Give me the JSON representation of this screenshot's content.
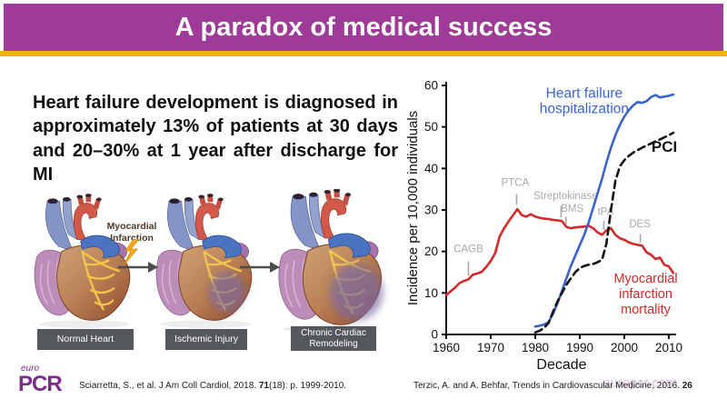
{
  "header": {
    "title": "A paradox of medical success"
  },
  "statement": "Heart failure development is diagnosed in approximately 13% of patients at 30 days and 20–30% at 1 year after discharge for MI",
  "figure": {
    "mi_event_label": "Myocardial\nInfarction",
    "stages": [
      {
        "label": "Normal Heart"
      },
      {
        "label": "Ischemic Injury"
      },
      {
        "label": "Chronic Cardiac Remodeling"
      }
    ]
  },
  "chart_data": {
    "type": "line",
    "title": "",
    "xlabel": "Decade",
    "ylabel": "Incidence per 10,000 individuals",
    "xlim": [
      1960,
      2012
    ],
    "ylim": [
      0,
      60
    ],
    "grid": false,
    "x_ticks": [
      1960,
      1970,
      1980,
      1990,
      2000,
      2010
    ],
    "y_ticks": [
      0,
      10,
      20,
      30,
      40,
      50,
      60
    ],
    "series": [
      {
        "name": "Myocardial infarction mortality",
        "color": "#d2292b",
        "dash": "",
        "points": [
          [
            1960,
            9.5
          ],
          [
            1961,
            10.4
          ],
          [
            1962,
            11.3
          ],
          [
            1963,
            12.4
          ],
          [
            1964,
            12.9
          ],
          [
            1965,
            13.3
          ],
          [
            1966,
            14.4
          ],
          [
            1967,
            14.7
          ],
          [
            1968,
            15.1
          ],
          [
            1969,
            16.3
          ],
          [
            1970,
            17.7
          ],
          [
            1971,
            19.6
          ],
          [
            1972,
            23.6
          ],
          [
            1973,
            25.6
          ],
          [
            1974,
            27.2
          ],
          [
            1975,
            28.7
          ],
          [
            1976,
            30.2
          ],
          [
            1977,
            28.7
          ],
          [
            1978,
            28.4
          ],
          [
            1979,
            29.0
          ],
          [
            1980,
            28.4
          ],
          [
            1981,
            28.1
          ],
          [
            1982,
            27.9
          ],
          [
            1983,
            27.8
          ],
          [
            1984,
            27.6
          ],
          [
            1985,
            27.5
          ],
          [
            1986,
            27.3
          ],
          [
            1987,
            25.9
          ],
          [
            1988,
            25.6
          ],
          [
            1989,
            25.8
          ],
          [
            1990,
            25.9
          ],
          [
            1991,
            26.0
          ],
          [
            1992,
            26.2
          ],
          [
            1993,
            25.6
          ],
          [
            1994,
            24.6
          ],
          [
            1995,
            24.0
          ],
          [
            1996,
            25.1
          ],
          [
            1997,
            25.6
          ],
          [
            1998,
            24.0
          ],
          [
            1999,
            23.2
          ],
          [
            2000,
            22.8
          ],
          [
            2001,
            22.2
          ],
          [
            2002,
            21.8
          ],
          [
            2003,
            21.6
          ],
          [
            2004,
            21.4
          ],
          [
            2005,
            19.8
          ],
          [
            2006,
            19.2
          ],
          [
            2007,
            18.2
          ],
          [
            2008,
            18.5
          ],
          [
            2009,
            16.8
          ],
          [
            2010,
            16.4
          ],
          [
            2011,
            14.8
          ]
        ]
      },
      {
        "name": "Heart failure hospitalization",
        "color": "#3b63c8",
        "dash": "",
        "points": [
          [
            1980,
            1.9
          ],
          [
            1981,
            2.1
          ],
          [
            1982,
            2.4
          ],
          [
            1983,
            3.0
          ],
          [
            1984,
            5.0
          ],
          [
            1985,
            7.5
          ],
          [
            1986,
            10.5
          ],
          [
            1987,
            13.5
          ],
          [
            1988,
            16.5
          ],
          [
            1989,
            19.0
          ],
          [
            1990,
            21.5
          ],
          [
            1991,
            24.0
          ],
          [
            1992,
            27.0
          ],
          [
            1993,
            30.5
          ],
          [
            1994,
            34.0
          ],
          [
            1995,
            37.5
          ],
          [
            1996,
            41.5
          ],
          [
            1997,
            45.0
          ],
          [
            1998,
            48.0
          ],
          [
            1999,
            50.5
          ],
          [
            2000,
            52.5
          ],
          [
            2001,
            54.0
          ],
          [
            2002,
            55.2
          ],
          [
            2003,
            56.0
          ],
          [
            2004,
            55.8
          ],
          [
            2005,
            56.2
          ],
          [
            2006,
            57.2
          ],
          [
            2007,
            57.7
          ],
          [
            2008,
            57.1
          ],
          [
            2009,
            57.3
          ],
          [
            2010,
            57.5
          ],
          [
            2011,
            57.8
          ]
        ]
      },
      {
        "name": "PCI",
        "color": "#141414",
        "dash": "8,5",
        "points": [
          [
            1980,
            0.5
          ],
          [
            1981,
            0.9
          ],
          [
            1982,
            1.6
          ],
          [
            1983,
            2.8
          ],
          [
            1984,
            5.5
          ],
          [
            1985,
            8.0
          ],
          [
            1986,
            10.0
          ],
          [
            1987,
            12.0
          ],
          [
            1988,
            13.5
          ],
          [
            1989,
            15.0
          ],
          [
            1990,
            16.0
          ],
          [
            1991,
            16.5
          ],
          [
            1992,
            16.8
          ],
          [
            1993,
            17.0
          ],
          [
            1994,
            17.4
          ],
          [
            1995,
            18.0
          ],
          [
            1996,
            22.0
          ],
          [
            1997,
            30.0
          ],
          [
            1998,
            37.0
          ],
          [
            1999,
            40.5
          ],
          [
            2000,
            42.0
          ],
          [
            2001,
            43.0
          ],
          [
            2002,
            43.8
          ],
          [
            2003,
            44.4
          ],
          [
            2004,
            45.0
          ],
          [
            2005,
            45.5
          ],
          [
            2006,
            46.0
          ],
          [
            2007,
            46.5
          ],
          [
            2008,
            47.0
          ],
          [
            2009,
            47.5
          ],
          [
            2010,
            48.0
          ],
          [
            2011,
            48.6
          ]
        ]
      }
    ],
    "curve_labels": [
      {
        "text": "Heart failure\nhospitalization",
        "color": "#3b63c8",
        "year": 1991,
        "value": 57.0,
        "size": 15.5,
        "weight": "normal"
      },
      {
        "text": "PCI",
        "color": "#141414",
        "year": 2009,
        "value": 44.0,
        "size": 17,
        "weight": "bold"
      },
      {
        "text": "Myocardial\ninfarction\nmortality",
        "color": "#d2292b",
        "year": 2004.8,
        "value": 12.5,
        "size": 14.5,
        "weight": "normal"
      }
    ],
    "annotations": [
      {
        "label": "CAGB",
        "year": 1965.0,
        "value": 19.8,
        "tick_year": 1965.0,
        "tick_top": 17.6,
        "tick_bottom": 14.2
      },
      {
        "label": "PTCA",
        "year": 1975.5,
        "value": 35.8,
        "tick_year": 1975.8,
        "tick_top": 33.8,
        "tick_bottom": 31.2
      },
      {
        "label": "Streptokinase",
        "year": 1986.8,
        "value": 32.6,
        "tick_year": 1985.8,
        "tick_top": 31.0,
        "tick_bottom": 28.2
      },
      {
        "label": "BMS",
        "year": 1988.3,
        "value": 29.6,
        "tick_year": 1986.9,
        "tick_top": 28.4,
        "tick_bottom": 26.6
      },
      {
        "label": "tPA",
        "year": 1995.8,
        "value": 28.8,
        "tick_year": 1995.4,
        "tick_top": 27.4,
        "tick_bottom": 25.2
      },
      {
        "label": "DES",
        "year": 2003.5,
        "value": 25.8,
        "tick_year": 2003.6,
        "tick_top": 24.2,
        "tick_bottom": 22.2
      }
    ]
  },
  "footer": {
    "logo_top": "euro",
    "logo_main": "PCR",
    "citation_left": {
      "pre": "Sciarretta, S., et al. J Am Coll Cardiol, 2018. ",
      "bold": "71",
      "post": "(18): p. 1999-2010."
    },
    "citation_right": {
      "pre": "Terzic, A. and A. Behfar, Trends in Cardiovascular Medicine, 2016. ",
      "bold": "26",
      "post": ""
    },
    "watermark": "europcr.com"
  }
}
